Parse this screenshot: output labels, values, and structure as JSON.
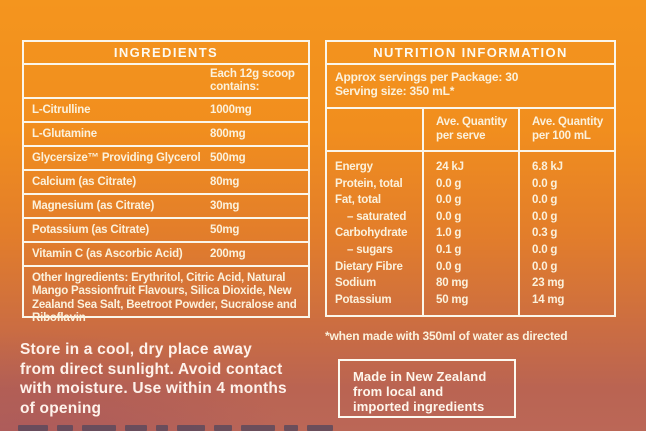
{
  "colors": {
    "background_top": "#F4951E",
    "background_bottom": "#B25E56",
    "table_text": "#FBF1DC",
    "table_border": "#FBF6EA",
    "notice_text": "#FEF2EB",
    "cutoff_text": "#57485C"
  },
  "ingredients_table": {
    "title": "INGREDIENTS",
    "amount_header": "Each 12g scoop contains:",
    "rows": [
      {
        "label": "L-Citrulline",
        "amount": "1000mg"
      },
      {
        "label": "L-Glutamine",
        "amount": "800mg"
      },
      {
        "label": "Glycersize™ Providing Glycerol",
        "amount": "500mg"
      },
      {
        "label": "Calcium (as Citrate)",
        "amount": "80mg"
      },
      {
        "label": "Magnesium (as Citrate)",
        "amount": "30mg"
      },
      {
        "label": "Potassium (as Citrate)",
        "amount": "50mg"
      },
      {
        "label": "Vitamin C (as Ascorbic Acid)",
        "amount": "200mg"
      }
    ],
    "other_ingredients": "Other Ingredients: Erythritol, Citric Acid, Natural Mango Passionfruit Flavours, Silica Dioxide, New Zealand Sea Salt, Beetroot Powder, Sucralose and Riboflavin"
  },
  "nutrition_table": {
    "title": "NUTRITION INFORMATION",
    "servings_line1": "Approx servings per Package: 30",
    "servings_line2": "Serving size: 350 mL*",
    "col_serve_line1": "Ave. Quantity",
    "col_serve_line2": "per serve",
    "col_100ml_line1": "Ave. Quantity",
    "col_100ml_line2": "per 100 mL",
    "rows": [
      {
        "name": "Energy",
        "per_serve": "24 kJ",
        "per_100ml": "6.8 kJ"
      },
      {
        "name": "Protein, total",
        "per_serve": "0.0 g",
        "per_100ml": "0.0 g"
      },
      {
        "name": "Fat, total",
        "per_serve": "0.0 g",
        "per_100ml": "0.0 g"
      },
      {
        "name": "– saturated",
        "per_serve": "0.0 g",
        "per_100ml": "0.0 g"
      },
      {
        "name": "Carbohydrate",
        "per_serve": "1.0 g",
        "per_100ml": "0.3 g"
      },
      {
        "name": "– sugars",
        "per_serve": "0.1 g",
        "per_100ml": "0.0 g"
      },
      {
        "name": "Dietary Fibre",
        "per_serve": "0.0 g",
        "per_100ml": "0.0 g"
      },
      {
        "name": "Sodium",
        "per_serve": "80 mg",
        "per_100ml": "23 mg"
      },
      {
        "name": "Potassium",
        "per_serve": "50 mg",
        "per_100ml": "14 mg"
      }
    ],
    "footnote": "*when made with 350ml of water as directed"
  },
  "origin_box": {
    "line1": "Made in New Zealand",
    "line2": "from local and",
    "line3": "imported ingredients"
  },
  "storage_notice": {
    "line1": "Store in a cool, dry place away",
    "line2": "from direct sunlight. Avoid contact",
    "line3": "with moisture. Use within 4 months",
    "line4": "of opening"
  }
}
